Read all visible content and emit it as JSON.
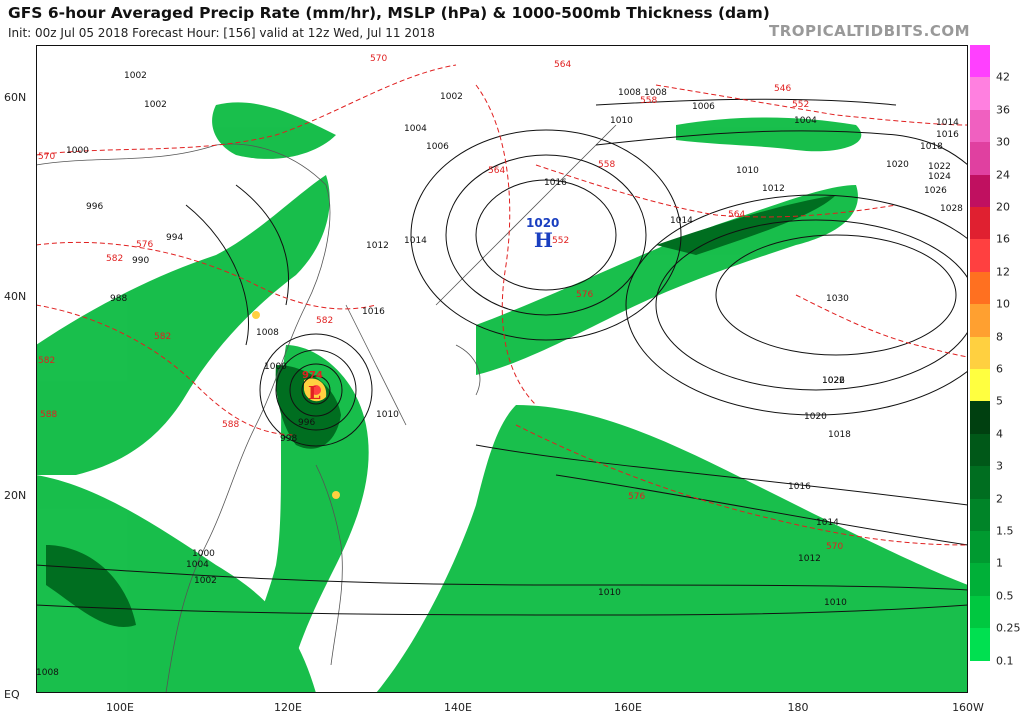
{
  "header": {
    "title": "GFS 6-hour Averaged Precip Rate (mm/hr), MSLP (hPa) & 1000-500mb Thickness (dam)",
    "subtitle": "Init: 00z Jul 05 2018   Forecast Hour: [156]   valid at 12z Wed, Jul 11 2018",
    "credit": "TROPICALTIDBITS.COM"
  },
  "latitude_labels": [
    "60N",
    "40N",
    "20N",
    "EQ"
  ],
  "longitude_labels": [
    "100E",
    "120E",
    "140E",
    "160E",
    "180",
    "160W"
  ],
  "legend": {
    "labels": [
      "0.1",
      "0.25",
      "0.5",
      "1",
      "1.5",
      "2",
      "3",
      "4",
      "5",
      "6",
      "8",
      "10",
      "12",
      "16",
      "20",
      "24",
      "30",
      "36",
      "42"
    ],
    "colors": [
      "#ffffff",
      "#00e050",
      "#00c840",
      "#00b038",
      "#009a30",
      "#008428",
      "#006e20",
      "#005818",
      "#004010",
      "#ffff40",
      "#ffd040",
      "#ffa030",
      "#ff7020",
      "#ff4040",
      "#e02030",
      "#c01060",
      "#e040a0",
      "#f060c0",
      "#ff80e0",
      "#ff40ff"
    ]
  },
  "systems": {
    "high_value": "1020",
    "high_letter": "H",
    "low_value": "974",
    "low_letter": "L"
  },
  "pressure_labels": [
    "1002",
    "1002",
    "1000",
    "1002",
    "1008",
    "1006",
    "1004",
    "1014",
    "1016",
    "1018",
    "1020",
    "1022",
    "1024",
    "1026",
    "1028",
    "1030",
    "1010",
    "1012",
    "1014",
    "1016",
    "1018",
    "1020",
    "1022",
    "1026",
    "1008",
    "1004",
    "1006",
    "1010",
    "1012",
    "1014",
    "1016",
    "1000",
    "998",
    "996",
    "990",
    "988",
    "1016",
    "1014",
    "1012",
    "1010",
    "1010",
    "1010",
    "1008",
    "1008",
    "1004",
    "1002",
    "1000",
    "996",
    "994"
  ],
  "thickness_labels": [
    "570",
    "564",
    "558",
    "552",
    "546",
    "564",
    "570",
    "558",
    "552",
    "564",
    "576",
    "582",
    "582",
    "582",
    "588",
    "576",
    "570",
    "576",
    "582",
    "588"
  ]
}
